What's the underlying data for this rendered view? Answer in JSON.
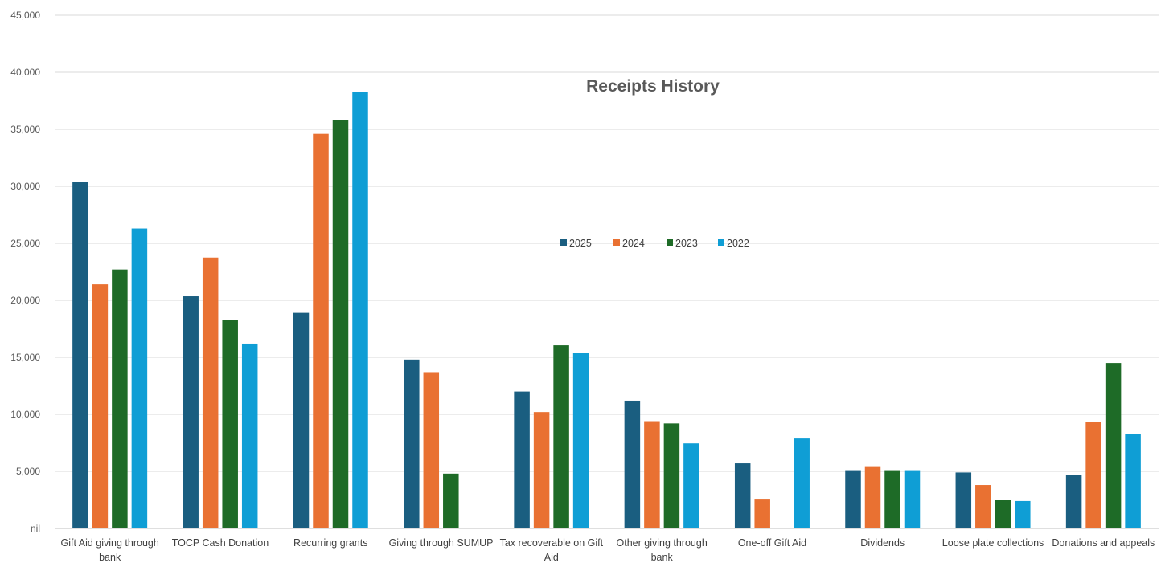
{
  "chart_data": {
    "type": "bar",
    "title": "Receipts History",
    "categories": [
      [
        "Gift Aid giving through",
        "bank"
      ],
      [
        "TOCP Cash Donation"
      ],
      [
        "Recurring grants"
      ],
      [
        "Giving through SUMUP"
      ],
      [
        "Tax recoverable on Gift",
        "Aid"
      ],
      [
        "Other giving through",
        "bank"
      ],
      [
        "One-off Gift Aid"
      ],
      [
        "Dividends"
      ],
      [
        "Loose plate collections"
      ],
      [
        "Donations and appeals"
      ]
    ],
    "series": [
      {
        "name": "2025",
        "color": "#1a5e80",
        "values": [
          30400,
          20350,
          18900,
          14800,
          12000,
          11200,
          5700,
          5100,
          4900,
          4700
        ]
      },
      {
        "name": "2024",
        "color": "#e97132",
        "values": [
          21400,
          23750,
          34600,
          13700,
          10200,
          9400,
          2600,
          5450,
          3800,
          9300
        ]
      },
      {
        "name": "2023",
        "color": "#1e6b27",
        "values": [
          22700,
          18300,
          35800,
          4800,
          16050,
          9200,
          0,
          5100,
          2500,
          14500
        ]
      },
      {
        "name": "2022",
        "color": "#0f9ed5",
        "values": [
          26300,
          16200,
          38300,
          0,
          15400,
          7450,
          7950,
          5100,
          2400,
          8300
        ]
      }
    ],
    "yticks": [
      "nil",
      "5,000",
      "10,000",
      "15,000",
      "20,000",
      "25,000",
      "30,000",
      "35,000",
      "40,000",
      "45,000"
    ],
    "ylim": [
      0,
      45000
    ],
    "grid": true,
    "legend_position": "inside-center"
  }
}
